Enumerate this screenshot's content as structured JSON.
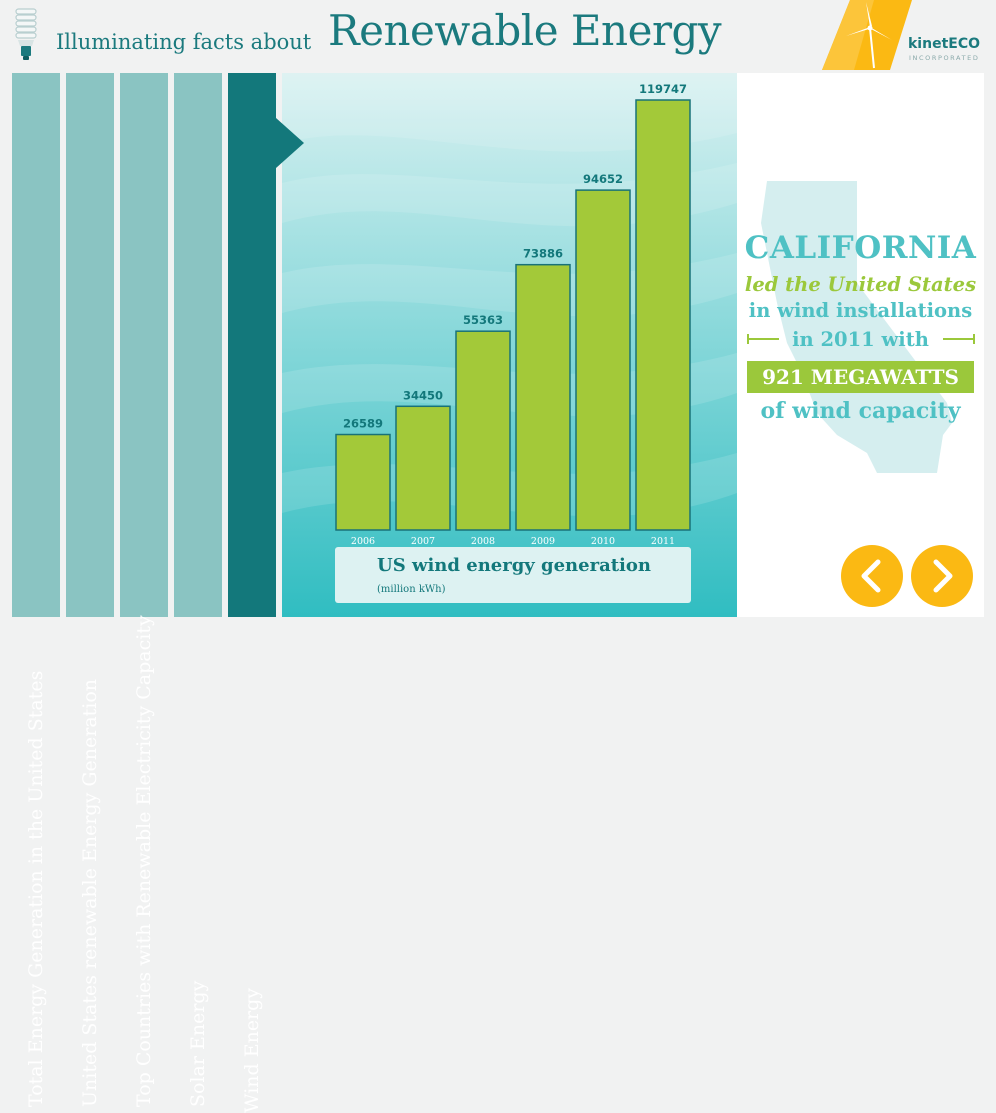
{
  "header": {
    "subtitle": "Illuminating facts about",
    "title": "Renewable Energy",
    "logo_name": "kinetECO",
    "logo_sub": "INCORPORATED"
  },
  "tabs": [
    {
      "label": "Total Energy Generation in the United States",
      "active": false
    },
    {
      "label": "United States renewable Energy Generation",
      "active": false
    },
    {
      "label": "Top Countries with Renewable Electricity Capacity",
      "active": false
    },
    {
      "label": "Solar Energy",
      "active": false
    },
    {
      "label": "Wind Energy",
      "active": true
    }
  ],
  "chart_data": {
    "type": "bar",
    "title": "US wind energy generation",
    "ylabel": "(million kWh)",
    "categories": [
      "2006",
      "2007",
      "2008",
      "2009",
      "2010",
      "2011"
    ],
    "values": [
      26589,
      34450,
      55363,
      73886,
      94652,
      119747
    ],
    "ylim": [
      0,
      119747
    ],
    "grid": false,
    "legend": "none"
  },
  "info": {
    "line1": "CALIFORNIA",
    "line2": "led the United States",
    "line3": "in wind installations",
    "line4": "in 2011 with",
    "line5": "921 MEGAWATTS",
    "line6": "of wind capacity"
  },
  "colors": {
    "bar": "#a3c939",
    "bar_edge": "#197278",
    "teal_dark": "#13787b",
    "teal_light": "#4fc1c4",
    "green": "#9bc83b",
    "yellow": "#fbb913"
  },
  "icons": {
    "bulb": "cfl-bulb-icon",
    "logo": "wind-turbine-icon",
    "prev": "chevron-left-icon",
    "next": "chevron-right-icon"
  }
}
